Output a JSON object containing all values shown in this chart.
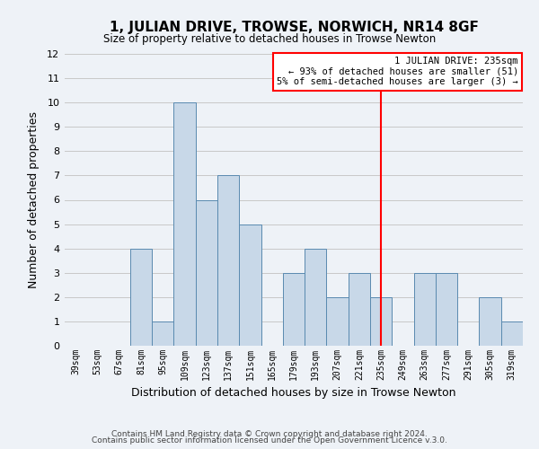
{
  "title": "1, JULIAN DRIVE, TROWSE, NORWICH, NR14 8GF",
  "subtitle": "Size of property relative to detached houses in Trowse Newton",
  "xlabel": "Distribution of detached houses by size in Trowse Newton",
  "ylabel": "Number of detached properties",
  "footer_lines": [
    "Contains HM Land Registry data © Crown copyright and database right 2024.",
    "Contains public sector information licensed under the Open Government Licence v.3.0."
  ],
  "bin_labels": [
    "39sqm",
    "53sqm",
    "67sqm",
    "81sqm",
    "95sqm",
    "109sqm",
    "123sqm",
    "137sqm",
    "151sqm",
    "165sqm",
    "179sqm",
    "193sqm",
    "207sqm",
    "221sqm",
    "235sqm",
    "249sqm",
    "263sqm",
    "277sqm",
    "291sqm",
    "305sqm",
    "319sqm"
  ],
  "bar_values": [
    0,
    0,
    0,
    4,
    1,
    10,
    6,
    7,
    5,
    0,
    3,
    4,
    2,
    3,
    2,
    0,
    3,
    3,
    0,
    2,
    1
  ],
  "bar_color": "#c8d8e8",
  "bar_edge_color": "#5a8ab0",
  "grid_color": "#c8c8c8",
  "vline_x_index": 14,
  "vline_color": "red",
  "annotation_title": "1 JULIAN DRIVE: 235sqm",
  "annotation_line1": "← 93% of detached houses are smaller (51)",
  "annotation_line2": "5% of semi-detached houses are larger (3) →",
  "ylim": [
    0,
    12
  ],
  "yticks": [
    0,
    1,
    2,
    3,
    4,
    5,
    6,
    7,
    8,
    9,
    10,
    11,
    12
  ],
  "background_color": "#eef2f7"
}
